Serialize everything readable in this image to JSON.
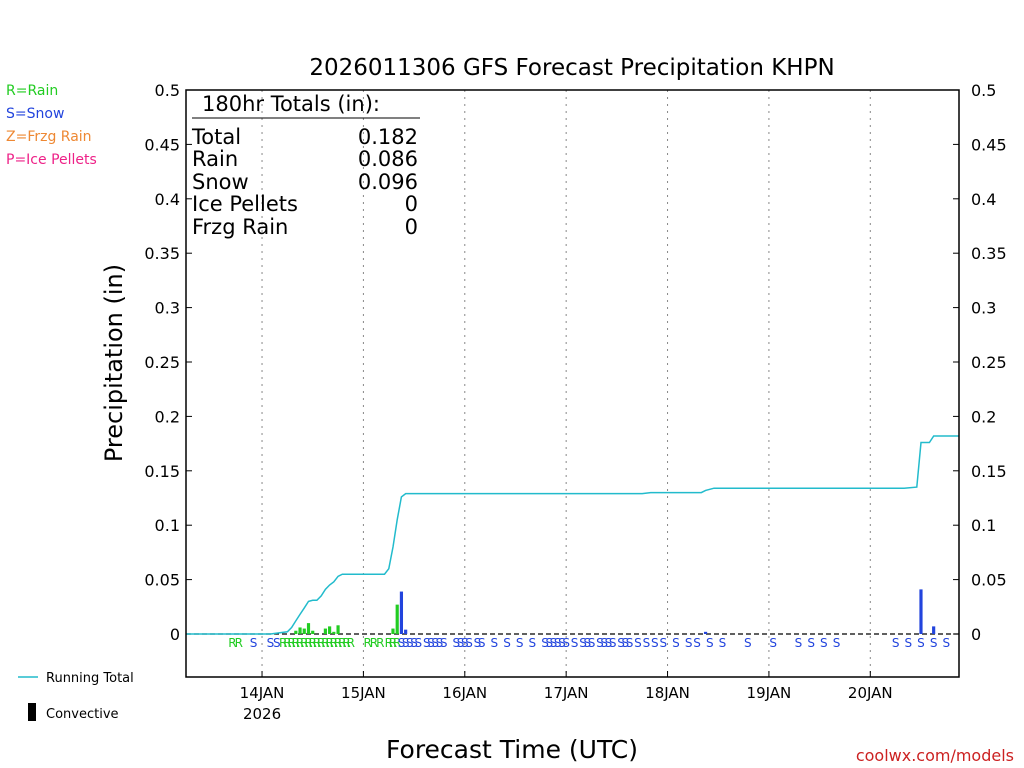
{
  "title": "2026011306 GFS Forecast Precipitation KHPN",
  "legend_types": [
    {
      "label": "R=Rain",
      "color": "#22cc22"
    },
    {
      "label": "S=Snow",
      "color": "#2244dd"
    },
    {
      "label": "Z=Frzg Rain",
      "color": "#ee8833"
    },
    {
      "label": "P=Ice Pellets",
      "color": "#ee2288"
    }
  ],
  "totals": {
    "header": "180hr Totals (in):",
    "rows": [
      {
        "label": "Total",
        "value": "0.182"
      },
      {
        "label": "Rain",
        "value": "0.086"
      },
      {
        "label": "Snow",
        "value": "0.096"
      },
      {
        "label": "Ice Pellets",
        "value": "0"
      },
      {
        "label": "Frzg Rain",
        "value": "0"
      }
    ]
  },
  "bottom_legend": {
    "running_total": {
      "label": "Running Total",
      "color": "#22bbcc"
    },
    "convective": {
      "label": "Convective",
      "color": "#000000"
    }
  },
  "credit": "coolwx.com/models",
  "colors": {
    "rain": "#22cc22",
    "snow": "#2244dd",
    "running_total": "#22bbcc",
    "credit": "#cc2222"
  },
  "chart_data": {
    "type": "bar",
    "title": "2026011306 GFS Forecast Precipitation KHPN",
    "xlabel": "Forecast Time (UTC)",
    "ylabel": "Precipitation (in)",
    "ylim": [
      0,
      0.5
    ],
    "x_unit": "hours from 2026-01-13 06 UTC",
    "xlim": [
      0,
      183
    ],
    "yticks": [
      "0",
      "0.05",
      "0.1",
      "0.15",
      "0.2",
      "0.25",
      "0.3",
      "0.35",
      "0.4",
      "0.45",
      "0.5"
    ],
    "xticks": [
      {
        "hour": 18,
        "label": "14JAN",
        "sublabel": "2026"
      },
      {
        "hour": 42,
        "label": "15JAN"
      },
      {
        "hour": 66,
        "label": "16JAN"
      },
      {
        "hour": 90,
        "label": "17JAN"
      },
      {
        "hour": 114,
        "label": "18JAN"
      },
      {
        "hour": 138,
        "label": "19JAN"
      },
      {
        "hour": 162,
        "label": "20JAN"
      }
    ],
    "grid": "vertical dotted at day boundaries",
    "bars": [
      {
        "x": 26,
        "value": 0.003,
        "type": "rain"
      },
      {
        "x": 27,
        "value": 0.006,
        "type": "rain"
      },
      {
        "x": 28,
        "value": 0.005,
        "type": "rain"
      },
      {
        "x": 29,
        "value": 0.01,
        "type": "rain"
      },
      {
        "x": 30,
        "value": 0.003,
        "type": "rain"
      },
      {
        "x": 33,
        "value": 0.005,
        "type": "rain"
      },
      {
        "x": 34,
        "value": 0.007,
        "type": "rain"
      },
      {
        "x": 35,
        "value": 0.002,
        "type": "rain"
      },
      {
        "x": 36,
        "value": 0.008,
        "type": "rain"
      },
      {
        "x": 49,
        "value": 0.005,
        "type": "rain"
      },
      {
        "x": 50,
        "value": 0.027,
        "type": "rain"
      },
      {
        "x": 51,
        "value": 0.039,
        "type": "snow"
      },
      {
        "x": 52,
        "value": 0.004,
        "type": "snow"
      },
      {
        "x": 123,
        "value": 0.002,
        "type": "snow"
      },
      {
        "x": 174,
        "value": 0.041,
        "type": "snow"
      },
      {
        "x": 177,
        "value": 0.007,
        "type": "snow"
      }
    ],
    "running_total": {
      "x": [
        0,
        20,
        24,
        25,
        26,
        27,
        28,
        29,
        30,
        31,
        32,
        33,
        34,
        35,
        36,
        37,
        44,
        45,
        46,
        47,
        48,
        49,
        50,
        51,
        52,
        60,
        70,
        80,
        90,
        100,
        108,
        110,
        116,
        122,
        123,
        125,
        130,
        140,
        150,
        160,
        170,
        173,
        174,
        175,
        176,
        177,
        183
      ],
      "y": [
        0,
        0,
        0.002,
        0.006,
        0.012,
        0.018,
        0.024,
        0.03,
        0.031,
        0.031,
        0.035,
        0.041,
        0.045,
        0.048,
        0.053,
        0.055,
        0.055,
        0.055,
        0.055,
        0.055,
        0.06,
        0.08,
        0.105,
        0.126,
        0.129,
        0.129,
        0.129,
        0.129,
        0.129,
        0.129,
        0.129,
        0.13,
        0.13,
        0.13,
        0.132,
        0.134,
        0.134,
        0.134,
        0.134,
        0.134,
        0.134,
        0.135,
        0.176,
        0.176,
        0.176,
        0.182,
        0.182
      ]
    },
    "type_markers": [
      {
        "x": 11,
        "label": "R",
        "type": "rain"
      },
      {
        "x": 12.5,
        "label": "R",
        "type": "rain"
      },
      {
        "x": 16,
        "label": "S",
        "type": "snow"
      },
      {
        "x": 20,
        "label": "S",
        "type": "snow"
      },
      {
        "x": 21.5,
        "label": "S",
        "type": "snow"
      },
      {
        "x": 23,
        "label": "R",
        "type": "rain"
      },
      {
        "x": 24,
        "label": "R",
        "type": "rain"
      },
      {
        "x": 25,
        "label": "R",
        "type": "rain"
      },
      {
        "x": 26,
        "label": "R",
        "type": "rain"
      },
      {
        "x": 27,
        "label": "R",
        "type": "rain"
      },
      {
        "x": 28,
        "label": "R",
        "type": "rain"
      },
      {
        "x": 29,
        "label": "R",
        "type": "rain"
      },
      {
        "x": 30,
        "label": "R",
        "type": "rain"
      },
      {
        "x": 31,
        "label": "R",
        "type": "rain"
      },
      {
        "x": 32,
        "label": "R",
        "type": "rain"
      },
      {
        "x": 33,
        "label": "R",
        "type": "rain"
      },
      {
        "x": 34,
        "label": "R",
        "type": "rain"
      },
      {
        "x": 35,
        "label": "R",
        "type": "rain"
      },
      {
        "x": 36,
        "label": "R",
        "type": "rain"
      },
      {
        "x": 37,
        "label": "R",
        "type": "rain"
      },
      {
        "x": 38,
        "label": "R",
        "type": "rain"
      },
      {
        "x": 39,
        "label": "R",
        "type": "rain"
      },
      {
        "x": 43,
        "label": "R",
        "type": "rain"
      },
      {
        "x": 44.5,
        "label": "R",
        "type": "rain"
      },
      {
        "x": 46,
        "label": "R",
        "type": "rain"
      },
      {
        "x": 48,
        "label": "R",
        "type": "rain"
      },
      {
        "x": 49,
        "label": "R",
        "type": "rain"
      },
      {
        "x": 50,
        "label": "R",
        "type": "rain"
      },
      {
        "x": 51,
        "label": "S",
        "type": "snow"
      },
      {
        "x": 52,
        "label": "S",
        "type": "snow"
      },
      {
        "x": 53,
        "label": "S",
        "type": "snow"
      },
      {
        "x": 54,
        "label": "S",
        "type": "snow"
      },
      {
        "x": 55,
        "label": "S",
        "type": "snow"
      },
      {
        "x": 57,
        "label": "S",
        "type": "snow"
      },
      {
        "x": 58,
        "label": "S",
        "type": "snow"
      },
      {
        "x": 59,
        "label": "S",
        "type": "snow"
      },
      {
        "x": 60,
        "label": "S",
        "type": "snow"
      },
      {
        "x": 61,
        "label": "S",
        "type": "snow"
      },
      {
        "x": 64,
        "label": "S",
        "type": "snow"
      },
      {
        "x": 65,
        "label": "S",
        "type": "snow"
      },
      {
        "x": 66,
        "label": "S",
        "type": "snow"
      },
      {
        "x": 67,
        "label": "S",
        "type": "snow"
      },
      {
        "x": 69,
        "label": "S",
        "type": "snow"
      },
      {
        "x": 70,
        "label": "S",
        "type": "snow"
      },
      {
        "x": 73,
        "label": "S",
        "type": "snow"
      },
      {
        "x": 76,
        "label": "S",
        "type": "snow"
      },
      {
        "x": 79,
        "label": "S",
        "type": "snow"
      },
      {
        "x": 82,
        "label": "S",
        "type": "snow"
      },
      {
        "x": 85,
        "label": "S",
        "type": "snow"
      },
      {
        "x": 86,
        "label": "S",
        "type": "snow"
      },
      {
        "x": 87,
        "label": "S",
        "type": "snow"
      },
      {
        "x": 88,
        "label": "S",
        "type": "snow"
      },
      {
        "x": 89,
        "label": "S",
        "type": "snow"
      },
      {
        "x": 90,
        "label": "S",
        "type": "snow"
      },
      {
        "x": 92,
        "label": "S",
        "type": "snow"
      },
      {
        "x": 94,
        "label": "S",
        "type": "snow"
      },
      {
        "x": 95,
        "label": "S",
        "type": "snow"
      },
      {
        "x": 96,
        "label": "S",
        "type": "snow"
      },
      {
        "x": 98,
        "label": "S",
        "type": "snow"
      },
      {
        "x": 99,
        "label": "S",
        "type": "snow"
      },
      {
        "x": 100,
        "label": "S",
        "type": "snow"
      },
      {
        "x": 101,
        "label": "S",
        "type": "snow"
      },
      {
        "x": 103,
        "label": "S",
        "type": "snow"
      },
      {
        "x": 104,
        "label": "S",
        "type": "snow"
      },
      {
        "x": 105,
        "label": "S",
        "type": "snow"
      },
      {
        "x": 107,
        "label": "S",
        "type": "snow"
      },
      {
        "x": 109,
        "label": "S",
        "type": "snow"
      },
      {
        "x": 111,
        "label": "S",
        "type": "snow"
      },
      {
        "x": 113,
        "label": "S",
        "type": "snow"
      },
      {
        "x": 116,
        "label": "S",
        "type": "snow"
      },
      {
        "x": 119,
        "label": "S",
        "type": "snow"
      },
      {
        "x": 121,
        "label": "S",
        "type": "snow"
      },
      {
        "x": 124,
        "label": "S",
        "type": "snow"
      },
      {
        "x": 127,
        "label": "S",
        "type": "snow"
      },
      {
        "x": 133,
        "label": "S",
        "type": "snow"
      },
      {
        "x": 139,
        "label": "S",
        "type": "snow"
      },
      {
        "x": 145,
        "label": "S",
        "type": "snow"
      },
      {
        "x": 148,
        "label": "S",
        "type": "snow"
      },
      {
        "x": 151,
        "label": "S",
        "type": "snow"
      },
      {
        "x": 154,
        "label": "S",
        "type": "snow"
      },
      {
        "x": 168,
        "label": "S",
        "type": "snow"
      },
      {
        "x": 171,
        "label": "S",
        "type": "snow"
      },
      {
        "x": 174,
        "label": "S",
        "type": "snow"
      },
      {
        "x": 177,
        "label": "S",
        "type": "snow"
      },
      {
        "x": 180,
        "label": "S",
        "type": "snow"
      }
    ]
  }
}
